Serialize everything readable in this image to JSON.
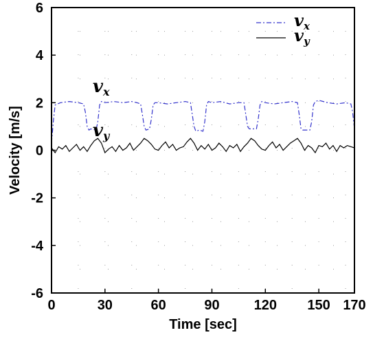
{
  "chart_data": {
    "type": "line",
    "title": "",
    "xlabel": "Time [sec]",
    "ylabel": "Velocity [m/s]",
    "xlim": [
      0,
      170
    ],
    "ylim": [
      -6,
      6
    ],
    "xticks": [
      0,
      30,
      60,
      90,
      120,
      150,
      170
    ],
    "yticks": [
      -6,
      -4,
      -2,
      0,
      2,
      4,
      6
    ],
    "grid": "dotted",
    "legend": {
      "placement": "top-right"
    },
    "series": [
      {
        "name": "v",
        "subscript": "x",
        "style": "dash-dot",
        "color": "#3333cc",
        "x": [
          0,
          1,
          2,
          5,
          10,
          15,
          18,
          19,
          20,
          21,
          22,
          25,
          26,
          27,
          28,
          30,
          35,
          40,
          45,
          48,
          50,
          51,
          52,
          53,
          55,
          56,
          57,
          58,
          60,
          65,
          70,
          75,
          78,
          79,
          80,
          81,
          83,
          85,
          86,
          87,
          88,
          90,
          95,
          100,
          105,
          108,
          109,
          110,
          111,
          115,
          116,
          117,
          118,
          120,
          125,
          130,
          135,
          138,
          139,
          140,
          141,
          145,
          146,
          147,
          148,
          150,
          155,
          160,
          165,
          168,
          169,
          170
        ],
        "y": [
          0.3,
          1.2,
          1.9,
          2.0,
          2.05,
          2.0,
          1.95,
          1.6,
          1.0,
          0.85,
          0.9,
          0.85,
          1.2,
          1.9,
          2.05,
          2.0,
          2.05,
          2.0,
          2.05,
          2.0,
          1.95,
          1.5,
          1.0,
          0.85,
          0.9,
          1.3,
          1.9,
          2.0,
          2.0,
          1.95,
          2.0,
          2.05,
          2.0,
          1.5,
          1.0,
          0.8,
          0.85,
          0.8,
          1.2,
          1.9,
          2.05,
          2.0,
          2.05,
          1.95,
          2.0,
          2.0,
          1.5,
          1.0,
          0.9,
          0.9,
          1.3,
          1.9,
          2.05,
          2.0,
          1.95,
          2.0,
          2.05,
          2.0,
          1.5,
          0.9,
          0.85,
          0.85,
          1.2,
          1.9,
          2.05,
          2.1,
          2.0,
          1.95,
          2.0,
          1.95,
          1.6,
          0.9
        ]
      },
      {
        "name": "v",
        "subscript": "y",
        "style": "solid",
        "color": "#000000",
        "x": [
          0,
          2,
          4,
          6,
          8,
          10,
          12,
          14,
          16,
          18,
          20,
          22,
          24,
          26,
          28,
          30,
          32,
          34,
          36,
          38,
          40,
          42,
          44,
          46,
          48,
          50,
          52,
          54,
          56,
          58,
          60,
          62,
          64,
          66,
          68,
          70,
          72,
          74,
          76,
          78,
          80,
          82,
          84,
          86,
          88,
          90,
          92,
          94,
          96,
          98,
          100,
          102,
          104,
          106,
          108,
          110,
          112,
          114,
          116,
          118,
          120,
          122,
          124,
          126,
          128,
          130,
          132,
          134,
          136,
          138,
          140,
          142,
          144,
          146,
          148,
          150,
          152,
          154,
          156,
          158,
          160,
          162,
          164,
          166,
          168,
          170
        ],
        "y": [
          0.1,
          -0.1,
          0.15,
          0.05,
          0.2,
          -0.05,
          0.1,
          0.25,
          0.0,
          0.15,
          -0.05,
          0.2,
          0.4,
          0.5,
          0.3,
          -0.1,
          0.05,
          0.15,
          -0.05,
          0.2,
          0.0,
          0.1,
          0.3,
          0.0,
          0.15,
          0.3,
          0.5,
          0.4,
          0.25,
          0.05,
          0.0,
          0.2,
          0.35,
          0.1,
          0.25,
          0.0,
          0.1,
          0.15,
          0.35,
          0.5,
          0.3,
          0.0,
          0.2,
          0.05,
          0.25,
          0.0,
          0.1,
          0.3,
          0.15,
          -0.05,
          0.2,
          0.1,
          0.25,
          -0.05,
          0.15,
          0.3,
          0.5,
          0.4,
          0.2,
          0.05,
          0.0,
          0.2,
          0.35,
          0.1,
          0.25,
          0.0,
          0.15,
          0.3,
          0.4,
          0.5,
          0.3,
          0.0,
          0.2,
          0.1,
          -0.1,
          0.2,
          0.15,
          0.3,
          0.05,
          0.2,
          -0.05,
          0.2,
          0.1,
          0.2,
          0.15,
          0.1
        ]
      }
    ],
    "annotations": [
      {
        "text": "v",
        "subscript": "x",
        "x": 25,
        "y": 2.45,
        "series": 0
      },
      {
        "text": "v",
        "subscript": "y",
        "x": 25,
        "y": 0.6,
        "series": 1
      }
    ]
  }
}
